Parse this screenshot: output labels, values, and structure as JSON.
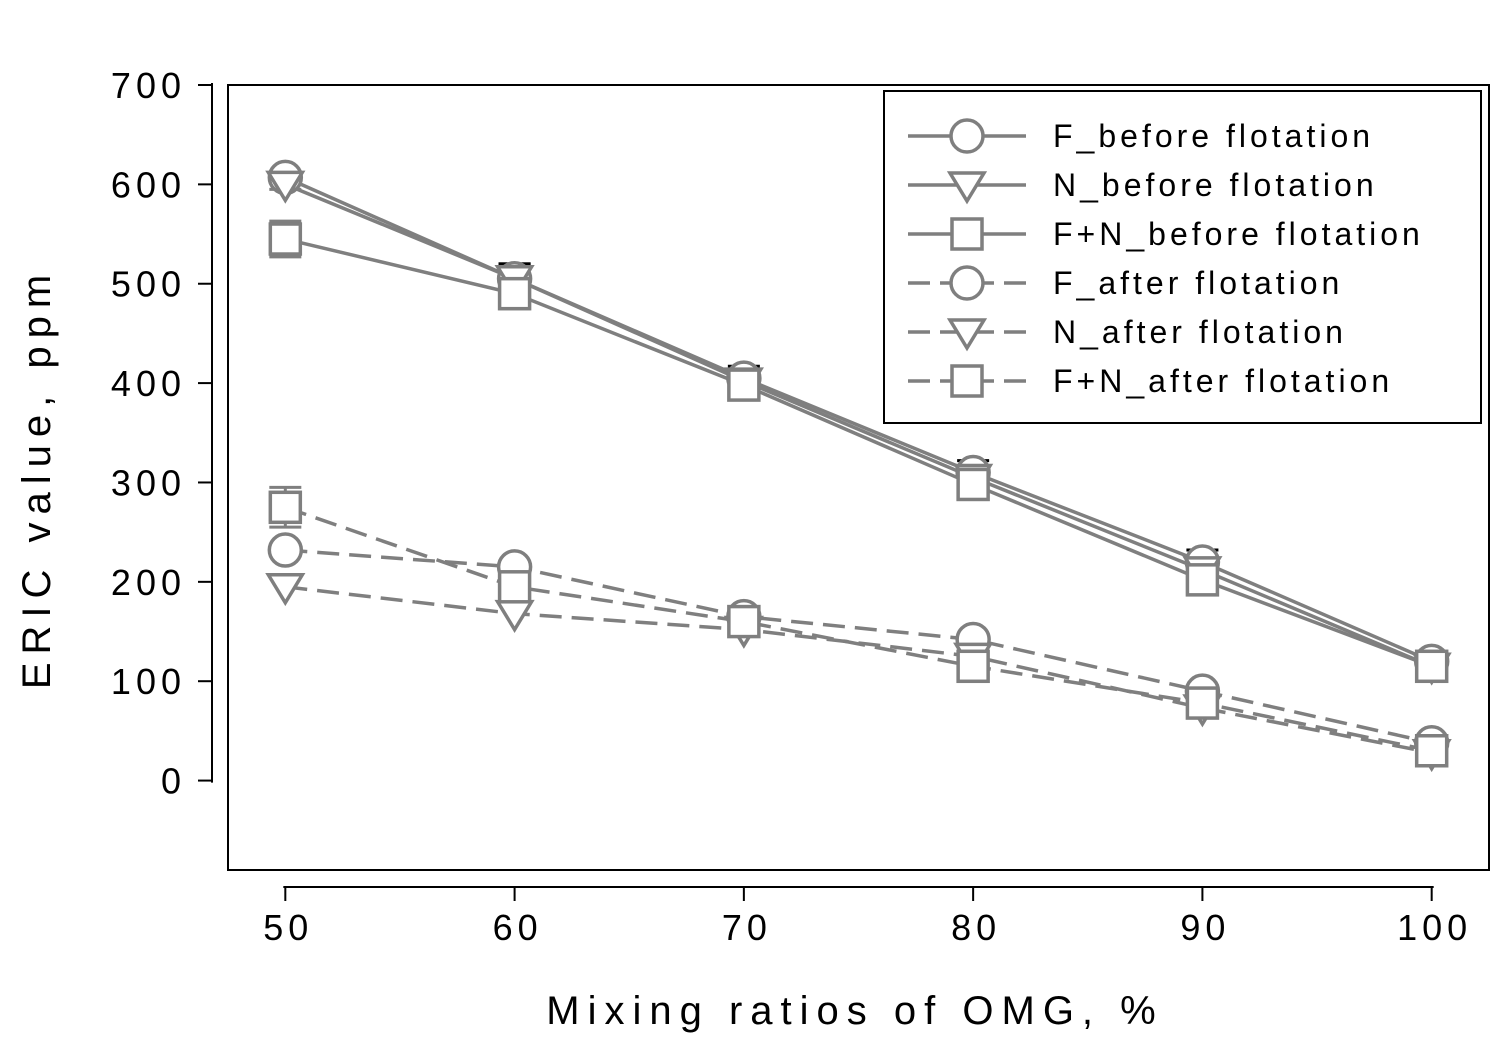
{
  "chart_data": {
    "type": "line",
    "xlabel": "Mixing ratios of OMG, %",
    "ylabel": "ERIC value, ppm",
    "xlim": [
      47.5,
      102.5
    ],
    "ylim": [
      -90,
      700
    ],
    "x": [
      50,
      60,
      70,
      80,
      90,
      100
    ],
    "xticks": [
      "50",
      "60",
      "70",
      "80",
      "90",
      "100"
    ],
    "yticks": [
      "0",
      "100",
      "200",
      "300",
      "400",
      "500",
      "600",
      "700"
    ],
    "legend_position": "top-right",
    "color": "#7f7f7f",
    "series": [
      {
        "name": "F_before flotation",
        "marker": "circle",
        "dash": "solid",
        "values": [
          607,
          505,
          405,
          310,
          220,
          120
        ],
        "err": [
          5,
          15,
          12,
          12,
          12,
          8
        ]
      },
      {
        "name": "N_before flotation",
        "marker": "triangle",
        "dash": "solid",
        "values": [
          600,
          505,
          402,
          305,
          212,
          115
        ],
        "err": [
          5,
          15,
          12,
          12,
          12,
          8
        ]
      },
      {
        "name": "F+N_before flotation",
        "marker": "square",
        "dash": "solid",
        "values": [
          545,
          490,
          398,
          298,
          202,
          115
        ],
        "err": [
          18,
          15,
          12,
          12,
          12,
          8
        ]
      },
      {
        "name": "F_after flotation",
        "marker": "circle",
        "dash": "dashed",
        "values": [
          232,
          215,
          165,
          142,
          90,
          38
        ],
        "err": [
          0,
          0,
          0,
          0,
          0,
          0
        ]
      },
      {
        "name": "N_after flotation",
        "marker": "triangle",
        "dash": "dashed",
        "values": [
          195,
          168,
          152,
          125,
          73,
          28
        ],
        "err": [
          0,
          0,
          0,
          0,
          0,
          0
        ]
      },
      {
        "name": "F+N_after flotation",
        "marker": "square",
        "dash": "dashed",
        "values": [
          275,
          195,
          160,
          115,
          78,
          30
        ],
        "err": [
          20,
          0,
          0,
          0,
          0,
          0
        ]
      }
    ]
  }
}
